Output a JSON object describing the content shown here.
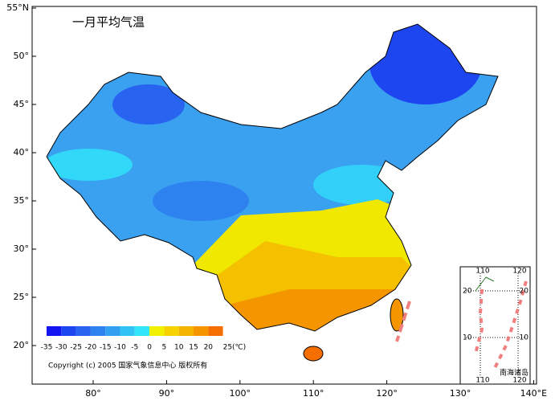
{
  "title": "一月平均气温",
  "lat_labels": [
    "55°N",
    "50°",
    "45°",
    "40°",
    "35°",
    "30°",
    "25°",
    "20°"
  ],
  "lon_labels": [
    "80°",
    "90°",
    "100°",
    "110°",
    "120°",
    "130°",
    "140°E"
  ],
  "legend": {
    "labels": [
      "-35",
      "-30",
      "-25",
      "-20",
      "-15",
      "-10",
      "-5",
      "0",
      "5",
      "10",
      "15",
      "20",
      "25(℃)"
    ],
    "colors": [
      "#1414f0",
      "#1e46f0",
      "#2864f0",
      "#2d82f0",
      "#32a0f0",
      "#32c3f5",
      "#32e6fa",
      "#f0f000",
      "#f5d200",
      "#f5b400",
      "#f59600",
      "#f56e00"
    ]
  },
  "copyright": "Copyright (c) 2005 国家气象信息中心 版权所有",
  "inset": {
    "top_labels": [
      "110",
      "120"
    ],
    "left_labels": [
      "20",
      "10"
    ],
    "right_labels": [
      "20",
      "10"
    ],
    "bottom_labels": [
      "110",
      "120"
    ],
    "name": "南海诸岛"
  }
}
